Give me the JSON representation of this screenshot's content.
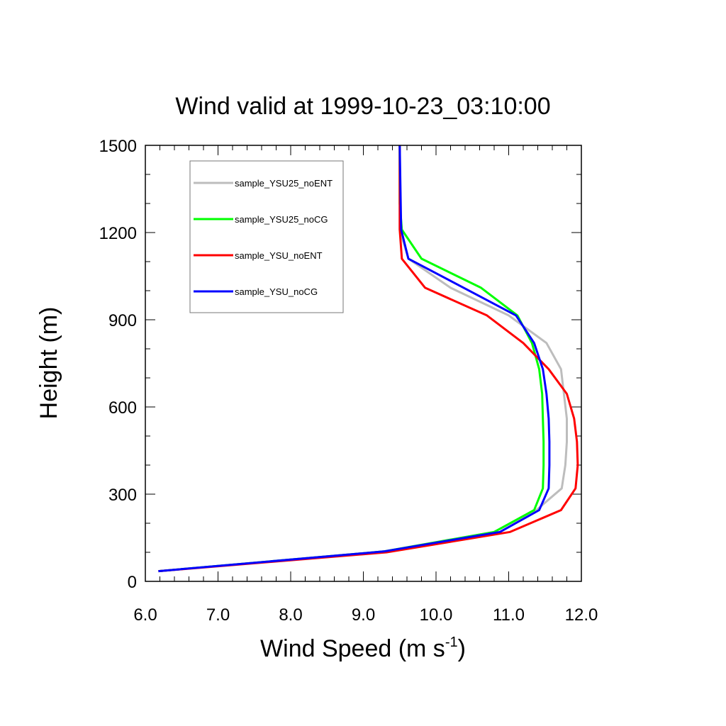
{
  "chart_data": {
    "type": "line",
    "title": "Wind valid at 1999-10-23_03:10:00",
    "xlabel": {
      "main": "Wind Speed (m s",
      "sup": "-1",
      "close": ")"
    },
    "ylabel": "Height (m)",
    "xlim": [
      6.0,
      12.0
    ],
    "ylim": [
      0,
      1500
    ],
    "xticks": [
      "6.0",
      "7.0",
      "8.0",
      "9.0",
      "10.0",
      "11.0",
      "12.0"
    ],
    "yticks": [
      "0",
      "300",
      "600",
      "900",
      "1200",
      "1500"
    ],
    "legend_position": "top-left",
    "series": [
      {
        "name": "sample_YSU25_noENT",
        "color": "#bdbdbd",
        "points": [
          [
            6.18,
            35
          ],
          [
            9.28,
            103
          ],
          [
            10.8,
            170
          ],
          [
            11.38,
            245
          ],
          [
            11.73,
            320
          ],
          [
            11.78,
            400
          ],
          [
            11.8,
            480
          ],
          [
            11.8,
            560
          ],
          [
            11.76,
            645
          ],
          [
            11.72,
            730
          ],
          [
            11.52,
            820
          ],
          [
            11.0,
            915
          ],
          [
            10.2,
            1010
          ],
          [
            9.62,
            1110
          ],
          [
            9.5,
            1210
          ],
          [
            9.5,
            1300
          ],
          [
            9.5,
            1500
          ]
        ]
      },
      {
        "name": "sample_YSU25_noCG",
        "color": "#00ff00",
        "points": [
          [
            6.18,
            35
          ],
          [
            9.28,
            103
          ],
          [
            10.8,
            170
          ],
          [
            11.35,
            245
          ],
          [
            11.47,
            320
          ],
          [
            11.48,
            400
          ],
          [
            11.48,
            480
          ],
          [
            11.47,
            560
          ],
          [
            11.46,
            645
          ],
          [
            11.42,
            730
          ],
          [
            11.32,
            820
          ],
          [
            11.12,
            915
          ],
          [
            10.62,
            1010
          ],
          [
            9.8,
            1110
          ],
          [
            9.53,
            1210
          ],
          [
            9.5,
            1300
          ],
          [
            9.5,
            1500
          ]
        ]
      },
      {
        "name": "sample_YSU_noENT",
        "color": "#ff0000",
        "points": [
          [
            6.18,
            35
          ],
          [
            9.32,
            100
          ],
          [
            11.02,
            170
          ],
          [
            11.72,
            245
          ],
          [
            11.92,
            320
          ],
          [
            11.95,
            400
          ],
          [
            11.94,
            480
          ],
          [
            11.9,
            560
          ],
          [
            11.8,
            645
          ],
          [
            11.55,
            730
          ],
          [
            11.2,
            820
          ],
          [
            10.7,
            915
          ],
          [
            9.85,
            1010
          ],
          [
            9.53,
            1110
          ],
          [
            9.5,
            1210
          ],
          [
            9.5,
            1500
          ]
        ]
      },
      {
        "name": "sample_YSU_noCG",
        "color": "#0000ff",
        "points": [
          [
            6.18,
            35
          ],
          [
            9.28,
            103
          ],
          [
            10.88,
            170
          ],
          [
            11.42,
            245
          ],
          [
            11.55,
            320
          ],
          [
            11.56,
            400
          ],
          [
            11.56,
            480
          ],
          [
            11.55,
            560
          ],
          [
            11.52,
            645
          ],
          [
            11.47,
            730
          ],
          [
            11.35,
            820
          ],
          [
            11.1,
            915
          ],
          [
            10.38,
            1010
          ],
          [
            9.62,
            1110
          ],
          [
            9.52,
            1210
          ],
          [
            9.5,
            1500
          ]
        ]
      }
    ]
  }
}
